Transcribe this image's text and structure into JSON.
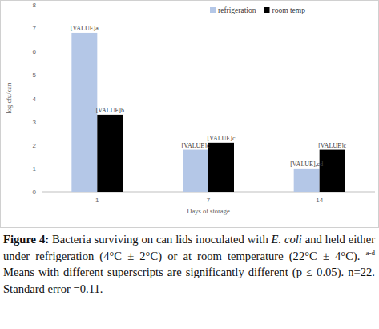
{
  "chart_data": {
    "type": "bar",
    "x_label": "Days of storage",
    "y_label": "log cfu/can",
    "categories": [
      "1",
      "7",
      "14"
    ],
    "series": [
      {
        "name": "refrigeration",
        "color": "#b4c7e7",
        "values": [
          6.8,
          1.8,
          1.0
        ],
        "value_labels": [
          "[VALUE]a",
          "[VALUE]c",
          "[VALUE],cd"
        ]
      },
      {
        "name": "room temp",
        "color": "#000000",
        "values": [
          3.3,
          2.1,
          1.8
        ],
        "value_labels": [
          "[VALUE]b",
          "[VALUE]c",
          "[VALUE]c"
        ]
      }
    ],
    "ylim": [
      0,
      8
    ],
    "yticks": [
      0,
      1,
      2,
      3,
      4,
      5,
      6,
      7,
      8
    ],
    "grid": false,
    "legend": "top",
    "data_labels": true
  },
  "caption": {
    "label": "Figure 4:",
    "text_before": "Bacteria surviving on can lids inoculated with",
    "organism": "E. coli",
    "text_middle": "and held either under refrigeration (4°C ± 2°C) or at room temperature (22°C ± 4°C).",
    "superscript": "a-d",
    "text_after": "Means with different superscripts are significantly different (p ≤ 0.05). n=22. Standard error =0.11."
  }
}
